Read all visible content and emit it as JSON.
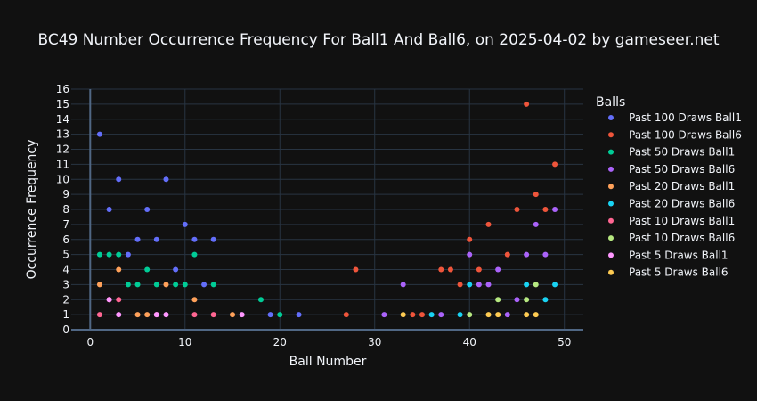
{
  "chart_data": {
    "type": "scatter",
    "title": "BC49 Number Occurrence Frequency For Ball1 And Ball6, on 2025-04-02 by gameseer.net",
    "xlabel": "Ball Number",
    "ylabel": "Occurrence Frequency",
    "xlim": [
      -2,
      52
    ],
    "ylim": [
      0,
      16
    ],
    "x_ticks": [
      0,
      10,
      20,
      30,
      40,
      50
    ],
    "y_ticks": [
      0,
      1,
      2,
      3,
      4,
      5,
      6,
      7,
      8,
      9,
      10,
      11,
      12,
      13,
      14,
      15,
      16
    ],
    "grid": true,
    "legend_title": "Balls",
    "legend_position": "right",
    "series": [
      {
        "name": "Past 100 Draws Ball1",
        "color": "#636efa",
        "x": [
          1,
          2,
          3,
          4,
          5,
          6,
          7,
          8,
          9,
          10,
          11,
          12,
          13,
          19,
          22
        ],
        "y": [
          13,
          8,
          10,
          5,
          6,
          8,
          6,
          10,
          4,
          7,
          6,
          3,
          6,
          1,
          1
        ]
      },
      {
        "name": "Past 100 Draws Ball6",
        "color": "#ef553b",
        "x": [
          27,
          28,
          34,
          35,
          37,
          38,
          39,
          40,
          41,
          42,
          44,
          45,
          46,
          47,
          48,
          49
        ],
        "y": [
          1,
          4,
          1,
          1,
          4,
          4,
          3,
          6,
          4,
          7,
          5,
          8,
          15,
          9,
          8,
          11
        ]
      },
      {
        "name": "Past 50 Draws Ball1",
        "color": "#00cc96",
        "x": [
          1,
          2,
          3,
          4,
          5,
          6,
          7,
          9,
          10,
          11,
          13,
          18,
          20
        ],
        "y": [
          5,
          5,
          5,
          3,
          3,
          4,
          3,
          3,
          3,
          5,
          3,
          2,
          1
        ]
      },
      {
        "name": "Past 50 Draws Ball6",
        "color": "#ab63fa",
        "x": [
          31,
          33,
          37,
          40,
          41,
          42,
          43,
          44,
          45,
          46,
          47,
          48,
          49
        ],
        "y": [
          1,
          3,
          1,
          5,
          3,
          3,
          4,
          1,
          2,
          5,
          7,
          5,
          8
        ]
      },
      {
        "name": "Past 20 Draws Ball1",
        "color": "#ffa15a",
        "x": [
          1,
          3,
          5,
          6,
          8,
          11,
          15
        ],
        "y": [
          3,
          4,
          1,
          1,
          3,
          2,
          1
        ]
      },
      {
        "name": "Past 20 Draws Ball6",
        "color": "#19d3f3",
        "x": [
          36,
          39,
          40,
          46,
          48,
          49
        ],
        "y": [
          1,
          1,
          3,
          3,
          2,
          3
        ]
      },
      {
        "name": "Past 10 Draws Ball1",
        "color": "#ff6692",
        "x": [
          1,
          2,
          3,
          7,
          11,
          13
        ],
        "y": [
          1,
          2,
          2,
          1,
          1,
          1
        ]
      },
      {
        "name": "Past 10 Draws Ball6",
        "color": "#b6e880",
        "x": [
          40,
          43,
          46,
          47
        ],
        "y": [
          1,
          2,
          2,
          3
        ]
      },
      {
        "name": "Past 5 Draws Ball1",
        "color": "#ff97ff",
        "x": [
          2,
          3,
          7,
          8,
          16
        ],
        "y": [
          2,
          1,
          1,
          1,
          1
        ]
      },
      {
        "name": "Past 5 Draws Ball6",
        "color": "#fecb52",
        "x": [
          33,
          42,
          43,
          46,
          47
        ],
        "y": [
          1,
          1,
          1,
          1,
          1
        ]
      }
    ]
  }
}
